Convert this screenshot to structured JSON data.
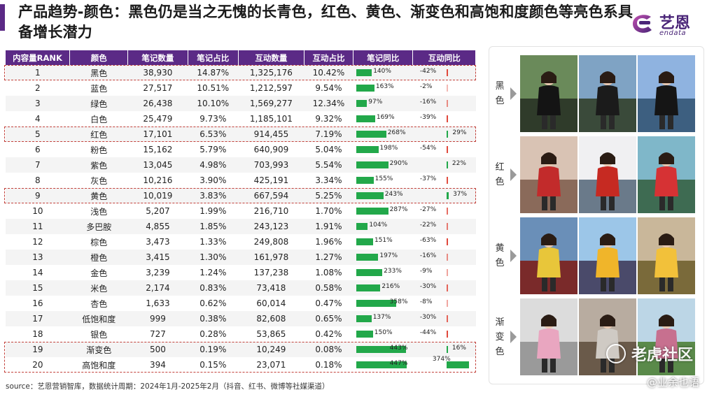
{
  "header": {
    "title": "产品趋势-颜色：黑色仍是当之无愧的长青色，红色、黄色、渐变色和高饱和度颜色等亮色系具备增长潜力",
    "logo_cn": "艺恩",
    "logo_en": "endata"
  },
  "table": {
    "headers": [
      "内容量RANK",
      "颜色",
      "笔记数量",
      "笔记占比",
      "互动数量",
      "互动占比",
      "笔记同比",
      "互动同比"
    ],
    "rows": [
      {
        "rank": "1",
        "color": "黑色",
        "notes": "38,930",
        "note_share": "14.87%",
        "interactions": "1,325,176",
        "inter_share": "10.42%",
        "note_yoy": "140%",
        "note_yoy_v": 140,
        "inter_yoy": "-42%",
        "inter_yoy_v": -42
      },
      {
        "rank": "2",
        "color": "蓝色",
        "notes": "27,517",
        "note_share": "10.51%",
        "interactions": "1,212,597",
        "inter_share": "9.54%",
        "note_yoy": "163%",
        "note_yoy_v": 163,
        "inter_yoy": "-2%",
        "inter_yoy_v": -2
      },
      {
        "rank": "3",
        "color": "绿色",
        "notes": "26,438",
        "note_share": "10.10%",
        "interactions": "1,569,277",
        "inter_share": "12.34%",
        "note_yoy": "97%",
        "note_yoy_v": 97,
        "inter_yoy": "-16%",
        "inter_yoy_v": -16
      },
      {
        "rank": "4",
        "color": "白色",
        "notes": "25,479",
        "note_share": "9.73%",
        "interactions": "1,185,101",
        "inter_share": "9.32%",
        "note_yoy": "169%",
        "note_yoy_v": 169,
        "inter_yoy": "-39%",
        "inter_yoy_v": -39
      },
      {
        "rank": "5",
        "color": "红色",
        "notes": "17,101",
        "note_share": "6.53%",
        "interactions": "914,455",
        "inter_share": "7.19%",
        "note_yoy": "268%",
        "note_yoy_v": 268,
        "inter_yoy": "29%",
        "inter_yoy_v": 29
      },
      {
        "rank": "6",
        "color": "粉色",
        "notes": "15,162",
        "note_share": "5.79%",
        "interactions": "640,909",
        "inter_share": "5.04%",
        "note_yoy": "198%",
        "note_yoy_v": 198,
        "inter_yoy": "-54%",
        "inter_yoy_v": -54
      },
      {
        "rank": "7",
        "color": "紫色",
        "notes": "13,045",
        "note_share": "4.98%",
        "interactions": "703,993",
        "inter_share": "5.54%",
        "note_yoy": "290%",
        "note_yoy_v": 290,
        "inter_yoy": "22%",
        "inter_yoy_v": 22
      },
      {
        "rank": "8",
        "color": "灰色",
        "notes": "10,216",
        "note_share": "3.90%",
        "interactions": "425,191",
        "inter_share": "3.34%",
        "note_yoy": "155%",
        "note_yoy_v": 155,
        "inter_yoy": "-37%",
        "inter_yoy_v": -37
      },
      {
        "rank": "9",
        "color": "黄色",
        "notes": "10,019",
        "note_share": "3.83%",
        "interactions": "667,594",
        "inter_share": "5.25%",
        "note_yoy": "243%",
        "note_yoy_v": 243,
        "inter_yoy": "37%",
        "inter_yoy_v": 37
      },
      {
        "rank": "10",
        "color": "浅色",
        "notes": "5,207",
        "note_share": "1.99%",
        "interactions": "216,710",
        "inter_share": "1.70%",
        "note_yoy": "287%",
        "note_yoy_v": 287,
        "inter_yoy": "-27%",
        "inter_yoy_v": -27
      },
      {
        "rank": "11",
        "color": "多巴胺",
        "notes": "4,855",
        "note_share": "1.85%",
        "interactions": "243,123",
        "inter_share": "1.91%",
        "note_yoy": "104%",
        "note_yoy_v": 104,
        "inter_yoy": "-22%",
        "inter_yoy_v": -22
      },
      {
        "rank": "12",
        "color": "棕色",
        "notes": "3,473",
        "note_share": "1.33%",
        "interactions": "249,808",
        "inter_share": "1.96%",
        "note_yoy": "151%",
        "note_yoy_v": 151,
        "inter_yoy": "-63%",
        "inter_yoy_v": -63
      },
      {
        "rank": "13",
        "color": "橙色",
        "notes": "3,415",
        "note_share": "1.30%",
        "interactions": "161,978",
        "inter_share": "1.27%",
        "note_yoy": "197%",
        "note_yoy_v": 197,
        "inter_yoy": "-16%",
        "inter_yoy_v": -16
      },
      {
        "rank": "14",
        "color": "金色",
        "notes": "3,239",
        "note_share": "1.24%",
        "interactions": "137,238",
        "inter_share": "1.08%",
        "note_yoy": "233%",
        "note_yoy_v": 233,
        "inter_yoy": "-9%",
        "inter_yoy_v": -9
      },
      {
        "rank": "15",
        "color": "米色",
        "notes": "2,174",
        "note_share": "0.83%",
        "interactions": "73,418",
        "inter_share": "0.58%",
        "note_yoy": "216%",
        "note_yoy_v": 216,
        "inter_yoy": "-30%",
        "inter_yoy_v": -30
      },
      {
        "rank": "16",
        "color": "杏色",
        "notes": "1,633",
        "note_share": "0.62%",
        "interactions": "60,014",
        "inter_share": "0.47%",
        "note_yoy": "358%",
        "note_yoy_v": 358,
        "inter_yoy": "-8%",
        "inter_yoy_v": -8
      },
      {
        "rank": "17",
        "color": "低饱和度",
        "notes": "999",
        "note_share": "0.38%",
        "interactions": "82,608",
        "inter_share": "0.65%",
        "note_yoy": "137%",
        "note_yoy_v": 137,
        "inter_yoy": "-30%",
        "inter_yoy_v": -30
      },
      {
        "rank": "18",
        "color": "银色",
        "notes": "727",
        "note_share": "0.28%",
        "interactions": "53,865",
        "inter_share": "0.42%",
        "note_yoy": "150%",
        "note_yoy_v": 150,
        "inter_yoy": "-44%",
        "inter_yoy_v": -44
      },
      {
        "rank": "19",
        "color": "渐变色",
        "notes": "500",
        "note_share": "0.19%",
        "interactions": "10,249",
        "inter_share": "0.08%",
        "note_yoy": "443%",
        "note_yoy_v": 443,
        "inter_yoy": "16%",
        "inter_yoy_v": 16
      },
      {
        "rank": "20",
        "color": "高饱和度",
        "notes": "394",
        "note_share": "0.15%",
        "interactions": "23,071",
        "inter_share": "0.18%",
        "note_yoy": "447%",
        "note_yoy_v": 447,
        "inter_yoy": "374%",
        "inter_yoy_v": 374
      }
    ],
    "highlighted_ranks": [
      "1",
      "5",
      "9",
      "19",
      "20"
    ],
    "positive_color": "#22a84a",
    "negative_color": "#e0493c",
    "header_color": "#5b2a86"
  },
  "panel": {
    "groups": [
      {
        "label": "黑色",
        "photos": [
          {
            "subject": "black jacket woman on wooden bridge"
          },
          {
            "subject": "black coat couple with mountains"
          },
          {
            "subject": "black outfit woman by lake"
          }
        ]
      },
      {
        "label": "红色",
        "photos": [
          {
            "subject": "red jacket woman mirror selfie"
          },
          {
            "subject": "red jacket woman in snow"
          },
          {
            "subject": "red jacket woman by lake"
          }
        ]
      },
      {
        "label": "黄色",
        "photos": [
          {
            "subject": "yellow jacket woman by red house"
          },
          {
            "subject": "yellow jacket woman before pagoda"
          },
          {
            "subject": "yellow jacket woman on grass"
          }
        ]
      },
      {
        "label": "渐变色",
        "photos": [
          {
            "subject": "pink jacket woman on stairs"
          },
          {
            "subject": "gradient puffer jacket mirror selfie"
          },
          {
            "subject": "person in gradient jacket outdoors"
          }
        ]
      }
    ]
  },
  "source": "source：艺恩营销智库，数据统计周期：2024年1月-2025年2月（抖音、红书、微博等社媒渠道）",
  "watermarks": {
    "main": "老虎社区",
    "sub": "@业余也语"
  }
}
